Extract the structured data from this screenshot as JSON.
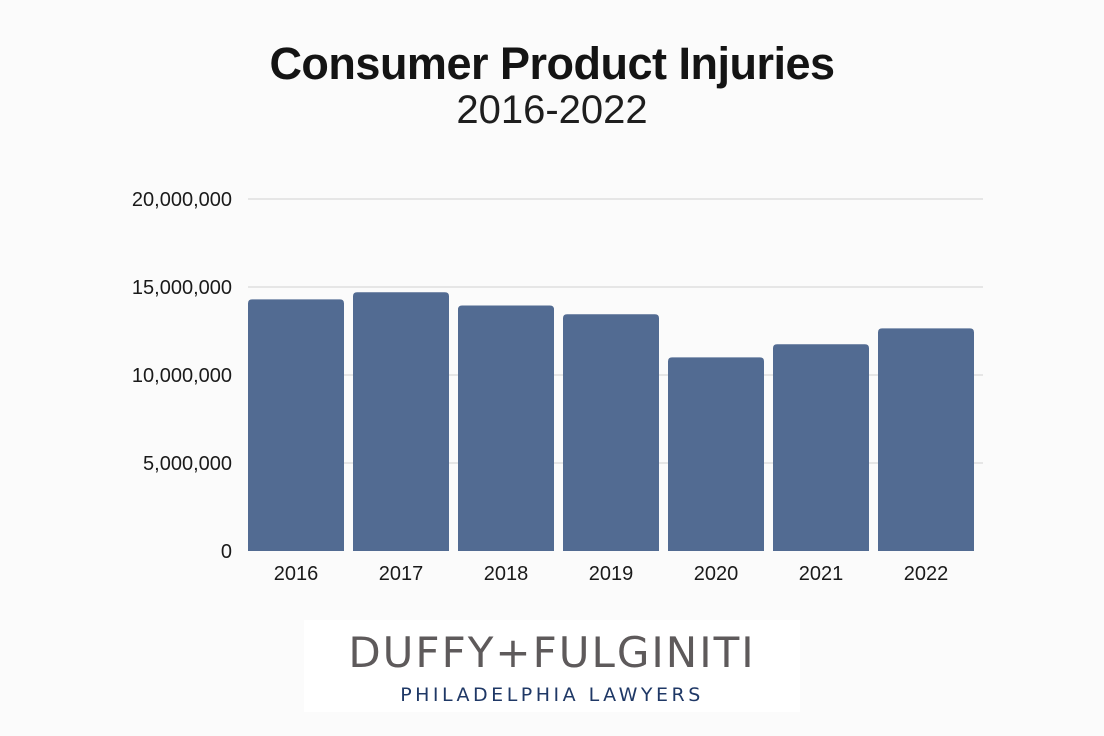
{
  "title": "Consumer Product Injuries",
  "subtitle": "2016-2022",
  "chart_data": {
    "type": "bar",
    "categories": [
      "2016",
      "2017",
      "2018",
      "2019",
      "2020",
      "2021",
      "2022"
    ],
    "values": [
      14300000,
      14700000,
      13950000,
      13450000,
      11000000,
      11750000,
      12650000
    ],
    "title": "Consumer Product Injuries",
    "subtitle": "2016-2022",
    "xlabel": "",
    "ylabel": "",
    "ylim": [
      0,
      20000000
    ],
    "yticks": [
      0,
      5000000,
      10000000,
      15000000,
      20000000
    ],
    "ytick_labels": [
      "0",
      "5,000,000",
      "10,000,000",
      "15,000,000",
      "20,000,000"
    ],
    "grid": true,
    "bar_color": "#526b92",
    "grid_color": "#d0d0d0"
  },
  "logo": {
    "main": "DUFFY+FULGINITI",
    "sub": "PHILADELPHIA LAWYERS"
  }
}
